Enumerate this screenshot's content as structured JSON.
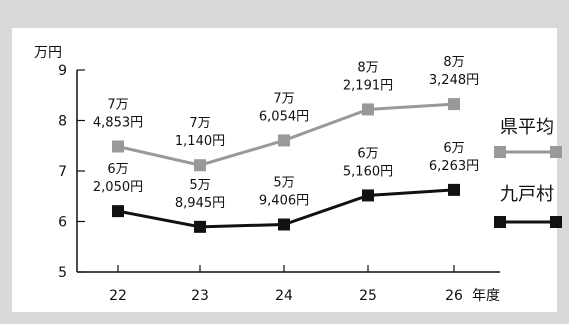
{
  "chart_data": {
    "type": "line",
    "y_unit_label": "万円",
    "x_unit_label": "年度",
    "categories": [
      "22",
      "23",
      "24",
      "25",
      "26"
    ],
    "ylim": [
      5,
      9
    ],
    "y_ticks": [
      "5",
      "6",
      "7",
      "8",
      "9"
    ],
    "grid": false,
    "legend_position": "right",
    "series": [
      {
        "name": "県平均",
        "color": "#999999",
        "marker": "square",
        "values": [
          74853,
          71140,
          76054,
          82191,
          83248
        ],
        "data_labels": [
          [
            "7万",
            "4,853円"
          ],
          [
            "7万",
            "1,140円"
          ],
          [
            "7万",
            "6,054円"
          ],
          [
            "8万",
            "2,191円"
          ],
          [
            "8万",
            "3,248円"
          ]
        ]
      },
      {
        "name": "九戸村",
        "color": "#111111",
        "marker": "square",
        "values": [
          62050,
          58945,
          59406,
          65160,
          66263
        ],
        "data_labels": [
          [
            "6万",
            "2,050円"
          ],
          [
            "5万",
            "8,945円"
          ],
          [
            "5万",
            "9,406円"
          ],
          [
            "6万",
            "5,160円"
          ],
          [
            "6万",
            "6,263円"
          ]
        ]
      }
    ]
  }
}
